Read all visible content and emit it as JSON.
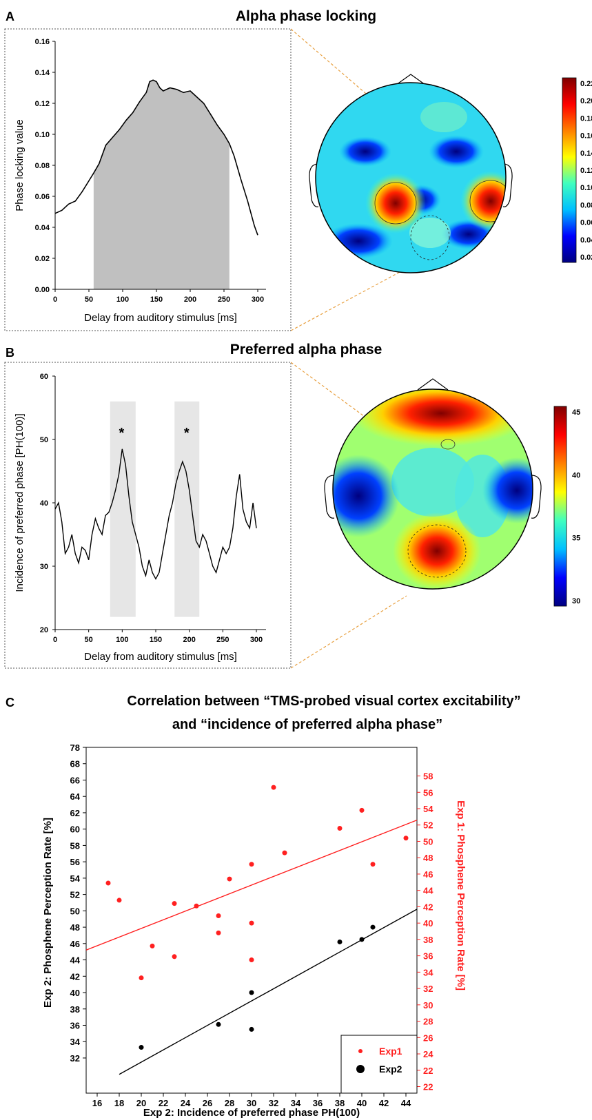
{
  "panels": {
    "a": {
      "letter": "A",
      "title": "Alpha phase locking",
      "colorbar_ticks": [
        "0.22",
        "0.20",
        "0.18",
        "0.16",
        "0.14",
        "0.12",
        "0.10",
        "0.08",
        "0.06",
        "0.04",
        "0.02"
      ],
      "colorbar_colors": [
        "#00007f",
        "#0000ff",
        "#00c0ff",
        "#40ffbf",
        "#ffff00",
        "#ff8000",
        "#ff0000",
        "#7f0000"
      ]
    },
    "b": {
      "letter": "B",
      "title": "Preferred alpha phase",
      "colorbar_ticks": [
        "45",
        "40",
        "35",
        "30"
      ],
      "colorbar_colors": [
        "#00007f",
        "#0000ff",
        "#00c0ff",
        "#40ffbf",
        "#ffff00",
        "#ff8000",
        "#ff0000",
        "#7f0000"
      ]
    },
    "c": {
      "letter": "C",
      "title_line1": "Correlation between “TMS-probed visual cortex excitability”",
      "title_line2": "and “incidence of preferred alpha phase”"
    }
  },
  "chart_data": [
    {
      "type": "area",
      "xlabel": "Delay from auditory stimulus [ms]",
      "ylabel": "Phase locking value",
      "xlim": [
        0,
        300
      ],
      "ylim": [
        0,
        0.16
      ],
      "xticks": [
        0,
        50,
        100,
        150,
        200,
        250,
        300
      ],
      "yticks": [
        0.0,
        0.02,
        0.04,
        0.06,
        0.08,
        0.1,
        0.12,
        0.14,
        0.16
      ],
      "shaded_range": [
        57,
        258
      ],
      "x": [
        0,
        10,
        20,
        30,
        40,
        50,
        57,
        65,
        75,
        85,
        95,
        105,
        115,
        125,
        135,
        140,
        145,
        150,
        155,
        160,
        170,
        180,
        190,
        200,
        210,
        220,
        230,
        240,
        250,
        258,
        265,
        275,
        285,
        295,
        300
      ],
      "y": [
        0.049,
        0.051,
        0.055,
        0.057,
        0.063,
        0.07,
        0.075,
        0.081,
        0.093,
        0.098,
        0.103,
        0.109,
        0.114,
        0.121,
        0.127,
        0.134,
        0.135,
        0.134,
        0.13,
        0.128,
        0.13,
        0.129,
        0.127,
        0.128,
        0.124,
        0.12,
        0.113,
        0.106,
        0.1,
        0.094,
        0.086,
        0.071,
        0.057,
        0.041,
        0.035
      ]
    },
    {
      "type": "line",
      "xlabel": "Delay from auditory stimulus [ms]",
      "ylabel": "Incidence of preferred phase [PH(100)]",
      "xlim": [
        0,
        300
      ],
      "ylim": [
        20,
        60
      ],
      "xticks": [
        0,
        50,
        100,
        150,
        200,
        250,
        300
      ],
      "yticks": [
        20,
        30,
        40,
        50,
        60
      ],
      "highlight_ranges": [
        [
          82,
          120
        ],
        [
          178,
          215
        ]
      ],
      "annotations": [
        {
          "x": 99,
          "y": 51,
          "text": "*"
        },
        {
          "x": 196,
          "y": 51,
          "text": "*"
        }
      ],
      "x": [
        0,
        5,
        10,
        15,
        20,
        25,
        30,
        35,
        40,
        45,
        50,
        55,
        60,
        65,
        70,
        75,
        80,
        85,
        90,
        95,
        100,
        105,
        110,
        115,
        120,
        125,
        130,
        135,
        140,
        145,
        150,
        155,
        160,
        165,
        170,
        175,
        180,
        185,
        190,
        195,
        200,
        205,
        210,
        215,
        220,
        225,
        230,
        235,
        240,
        245,
        250,
        255,
        260,
        265,
        270,
        275,
        280,
        285,
        290,
        295,
        300
      ],
      "y": [
        39,
        40,
        37,
        32,
        33,
        35,
        32,
        30.5,
        33,
        32.5,
        31,
        35,
        37.5,
        36,
        35,
        38,
        38.5,
        40,
        42,
        44.5,
        48.5,
        46,
        41,
        37,
        35,
        33,
        30,
        28.5,
        31,
        29,
        28,
        29,
        32,
        35,
        38,
        40,
        43,
        45,
        46.5,
        45,
        42,
        38,
        34,
        33,
        35,
        34,
        32,
        30,
        29,
        31,
        33,
        32,
        33,
        36,
        41,
        44.5,
        39,
        37,
        36,
        40,
        36
      ]
    },
    {
      "type": "scatter",
      "xlabel": "Exp 2: Incidence of preferred phase PH(100)",
      "ylabel": "Exp 2: Phosphene Perception Rate [%]",
      "ylabel_right": "Exp 1: Phosphene Perception Rate [%]",
      "xlim": [
        15,
        45
      ],
      "xticks": [
        16,
        18,
        20,
        22,
        24,
        26,
        28,
        30,
        32,
        34,
        36,
        38,
        40,
        42,
        44
      ],
      "yticks_left": [
        "32",
        "34",
        "36",
        "38",
        "40",
        "42",
        "44",
        "46",
        "48",
        "50",
        "52",
        "54",
        "56",
        "58",
        "60",
        "62",
        "64",
        "66",
        "68",
        "78"
      ],
      "yticks_right": [
        "22",
        "22",
        "24",
        "26",
        "28",
        "30",
        "32",
        "34",
        "36",
        "38",
        "40",
        "42",
        "44",
        "46",
        "48",
        "50",
        "52",
        "54",
        "56",
        "58"
      ],
      "legend_position": "bottom-right",
      "series": [
        {
          "name": "Exp1",
          "color": "#ff2020",
          "x": [
            17,
            18,
            20,
            21,
            23,
            23,
            25,
            27,
            27,
            28,
            30,
            30,
            30,
            32,
            33,
            38,
            40,
            41,
            44
          ],
          "y": [
            44.9,
            42.8,
            33.3,
            37.2,
            42.4,
            35.9,
            42.1,
            40.9,
            38.8,
            45.4,
            47.2,
            40.0,
            35.5,
            56.6,
            48.6,
            51.6,
            53.8,
            47.2,
            50.4
          ],
          "fit_line": {
            "x": [
              15,
              45
            ],
            "y": [
              36.7,
              52.6
            ]
          }
        },
        {
          "name": "Exp2",
          "color": "#000000",
          "x": [
            20,
            27,
            30,
            30,
            38,
            40,
            41
          ],
          "y": [
            33.3,
            36.1,
            40.0,
            35.5,
            46.2,
            46.5,
            48.0
          ],
          "fit_line": {
            "x": [
              18,
              45
            ],
            "y": [
              30,
              50.2
            ]
          }
        }
      ]
    }
  ]
}
